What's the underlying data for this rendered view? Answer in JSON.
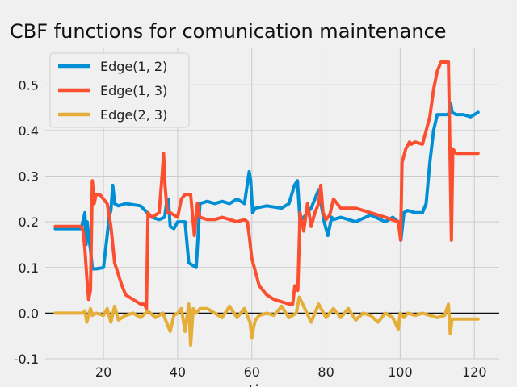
{
  "chart_data": {
    "type": "line",
    "title": "CBF functions for comunication maintenance",
    "xlabel": "time",
    "ylabel": "",
    "xlim": [
      4.3,
      126.7
    ],
    "ylim": [
      -0.1,
      0.58
    ],
    "xticks": [
      20,
      40,
      60,
      80,
      100,
      120
    ],
    "yticks": [
      -0.1,
      0.0,
      0.1,
      0.2,
      0.3,
      0.4,
      0.5
    ],
    "grid": true,
    "legend_position": "top-left",
    "zero_line": true,
    "series": [
      {
        "name": "Edge(1, 2)",
        "color": "#008fd5",
        "x": [
          7,
          14,
          15,
          15.3,
          15.6,
          16,
          16.5,
          17,
          17.5,
          18,
          20,
          21,
          21.5,
          22,
          22.5,
          23,
          24,
          26,
          30,
          33,
          35,
          36.5,
          37,
          37.5,
          38,
          39,
          40,
          42,
          43,
          45,
          46,
          48,
          50,
          52,
          54,
          56,
          58,
          59.3,
          59.7,
          60.2,
          61,
          64,
          68,
          70,
          71.5,
          72.3,
          73,
          74,
          76,
          78,
          79.5,
          80.5,
          81.5,
          82,
          84,
          88,
          92,
          96,
          98,
          99.5,
          100.2,
          101,
          102,
          104,
          106,
          107,
          108,
          109,
          110,
          111,
          112,
          113,
          113.6,
          114,
          115,
          117,
          119,
          121
        ],
        "y": [
          0.185,
          0.185,
          0.22,
          0.15,
          0.2,
          0.17,
          0.14,
          0.097,
          0.097,
          0.097,
          0.1,
          0.17,
          0.21,
          0.225,
          0.28,
          0.24,
          0.235,
          0.24,
          0.235,
          0.21,
          0.205,
          0.21,
          0.24,
          0.25,
          0.19,
          0.185,
          0.2,
          0.2,
          0.11,
          0.1,
          0.24,
          0.245,
          0.24,
          0.245,
          0.24,
          0.25,
          0.24,
          0.31,
          0.29,
          0.22,
          0.23,
          0.235,
          0.23,
          0.24,
          0.28,
          0.29,
          0.2,
          0.21,
          0.23,
          0.27,
          0.2,
          0.17,
          0.21,
          0.205,
          0.21,
          0.2,
          0.215,
          0.2,
          0.21,
          0.2,
          0.16,
          0.22,
          0.225,
          0.22,
          0.22,
          0.24,
          0.33,
          0.4,
          0.435,
          0.435,
          0.435,
          0.435,
          0.46,
          0.44,
          0.435,
          0.435,
          0.43,
          0.44
        ]
      },
      {
        "name": "Edge(1, 3)",
        "color": "#fc4f30",
        "x": [
          7,
          14,
          14.5,
          15,
          15.5,
          16,
          16.5,
          17,
          17.5,
          18,
          19,
          21,
          22,
          23,
          25,
          26,
          28,
          30,
          31,
          31.6,
          32,
          33,
          35,
          35.8,
          36.2,
          36.6,
          37.2,
          38,
          40,
          41,
          42,
          43.5,
          44.5,
          45.3,
          46,
          48,
          50,
          52,
          54,
          56,
          58,
          58.8,
          59.3,
          60,
          62,
          64,
          66,
          68,
          70,
          71,
          71.6,
          72.4,
          73,
          74,
          75,
          76,
          77,
          78,
          78.6,
          79.2,
          80,
          81,
          82,
          84,
          86,
          88,
          92,
          96,
          99.5,
          100.1,
          100.5,
          101.5,
          102.5,
          103,
          104,
          106,
          108,
          109,
          110,
          111,
          112,
          113,
          113.3,
          113.8,
          114.2,
          115,
          117,
          121
        ],
        "y": [
          0.19,
          0.19,
          0.18,
          0.14,
          0.08,
          0.03,
          0.05,
          0.29,
          0.24,
          0.26,
          0.26,
          0.24,
          0.19,
          0.11,
          0.06,
          0.04,
          0.03,
          0.02,
          0.02,
          0.01,
          0.22,
          0.21,
          0.22,
          0.3,
          0.35,
          0.28,
          0.22,
          0.22,
          0.21,
          0.25,
          0.26,
          0.26,
          0.17,
          0.24,
          0.21,
          0.205,
          0.205,
          0.21,
          0.205,
          0.2,
          0.205,
          0.2,
          0.17,
          0.12,
          0.06,
          0.04,
          0.03,
          0.025,
          0.02,
          0.02,
          0.06,
          0.05,
          0.22,
          0.18,
          0.24,
          0.19,
          0.22,
          0.24,
          0.28,
          0.22,
          0.205,
          0.215,
          0.25,
          0.23,
          0.23,
          0.23,
          0.22,
          0.21,
          0.2,
          0.16,
          0.33,
          0.36,
          0.375,
          0.37,
          0.375,
          0.37,
          0.43,
          0.49,
          0.53,
          0.55,
          0.55,
          0.55,
          0.41,
          0.16,
          0.36,
          0.35,
          0.35,
          0.35
        ],
        "dips": []
      },
      {
        "name": "Edge(2, 3)",
        "color": "#e5ae38",
        "x": [
          7,
          10,
          13,
          14.5,
          15,
          15.5,
          16,
          16.5,
          17,
          18,
          20,
          21,
          22,
          23,
          24,
          26,
          28,
          30,
          32,
          34,
          36,
          37,
          38,
          39,
          40,
          41,
          42,
          43,
          43.5,
          44.2,
          45,
          46,
          48,
          50,
          52,
          54,
          56,
          58,
          59.5,
          60,
          60.5,
          61,
          62,
          64,
          66,
          68,
          70,
          72,
          72.8,
          74,
          76,
          78,
          80,
          82,
          84,
          86,
          88,
          90,
          92,
          94,
          96,
          98,
          99.5,
          100,
          101,
          102,
          104,
          106,
          108,
          110,
          112,
          113,
          113.5,
          114,
          115,
          118,
          121
        ],
        "y": [
          0,
          0,
          0,
          0,
          0.005,
          -0.02,
          -0.005,
          0.01,
          -0.005,
          0,
          -0.005,
          0.01,
          -0.02,
          0.015,
          -0.015,
          -0.005,
          0,
          -0.01,
          0.005,
          -0.01,
          0,
          -0.02,
          -0.04,
          -0.005,
          0,
          0.01,
          -0.04,
          0.02,
          -0.07,
          0.01,
          0,
          0.01,
          0.01,
          0,
          -0.01,
          0.015,
          -0.01,
          0.01,
          -0.02,
          -0.055,
          -0.03,
          -0.015,
          -0.005,
          0,
          -0.005,
          0.015,
          -0.01,
          0,
          0.035,
          0.015,
          -0.02,
          0.02,
          -0.01,
          0.01,
          -0.01,
          0.01,
          -0.015,
          0,
          -0.005,
          -0.02,
          0,
          -0.01,
          -0.035,
          0,
          -0.01,
          0,
          -0.005,
          0,
          -0.005,
          -0.01,
          -0.005,
          0.02,
          -0.045,
          -0.013,
          -0.013,
          -0.013,
          -0.013
        ]
      }
    ]
  }
}
